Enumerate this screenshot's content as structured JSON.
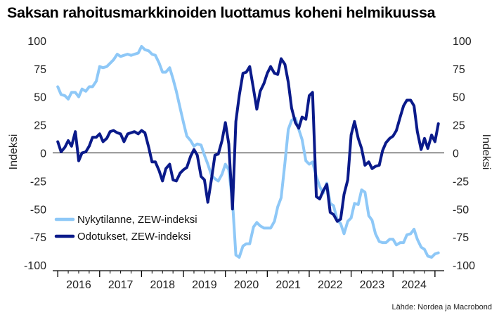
{
  "title": "Saksan rahoitusmarkkinoiden luottamus koheni helmikuussa",
  "source": "Lähde: Nordea ja Macrobond",
  "chart_data": {
    "type": "line",
    "ylabel_left": "Indeksi",
    "ylabel_right": "Indeksi",
    "ylim": [
      -105,
      105
    ],
    "yticks": [
      100,
      75,
      50,
      25,
      0,
      -25,
      -50,
      -75,
      -100
    ],
    "xlim": [
      2015.88,
      2025.22
    ],
    "x_tick_labels": [
      "2016",
      "2017",
      "2018",
      "2019",
      "2020",
      "2021",
      "2022",
      "2023",
      "2024"
    ],
    "grid": false,
    "zero_line": true,
    "legend_position": "lower-left",
    "series": [
      {
        "name": "Nykytilanne, ZEW-indeksi",
        "color": "#8ec8f7",
        "x": [
          2016.0,
          2016.08,
          2016.17,
          2016.25,
          2016.33,
          2016.42,
          2016.5,
          2016.58,
          2016.67,
          2016.75,
          2016.83,
          2016.92,
          2017.0,
          2017.08,
          2017.17,
          2017.25,
          2017.33,
          2017.42,
          2017.5,
          2017.58,
          2017.67,
          2017.75,
          2017.83,
          2017.92,
          2018.0,
          2018.08,
          2018.17,
          2018.25,
          2018.33,
          2018.42,
          2018.5,
          2018.58,
          2018.67,
          2018.75,
          2018.83,
          2018.92,
          2019.0,
          2019.08,
          2019.17,
          2019.25,
          2019.33,
          2019.42,
          2019.5,
          2019.58,
          2019.67,
          2019.75,
          2019.83,
          2019.92,
          2020.0,
          2020.08,
          2020.17,
          2020.25,
          2020.33,
          2020.42,
          2020.5,
          2020.58,
          2020.67,
          2020.75,
          2020.83,
          2020.92,
          2021.0,
          2021.08,
          2021.17,
          2021.25,
          2021.33,
          2021.42,
          2021.5,
          2021.58,
          2021.67,
          2021.75,
          2021.83,
          2021.92,
          2022.0,
          2022.08,
          2022.17,
          2022.25,
          2022.33,
          2022.42,
          2022.5,
          2022.58,
          2022.67,
          2022.75,
          2022.83,
          2022.92,
          2023.0,
          2023.08,
          2023.17,
          2023.25,
          2023.33,
          2023.42,
          2023.5,
          2023.58,
          2023.67,
          2023.75,
          2023.83,
          2023.92,
          2024.0,
          2024.08,
          2024.17,
          2024.25,
          2024.33,
          2024.42,
          2024.5,
          2024.58,
          2024.67,
          2024.75,
          2024.83,
          2024.92,
          2025.0,
          2025.08
        ],
        "y": [
          59,
          52,
          51,
          48,
          54,
          54,
          50,
          57,
          55,
          59,
          59,
          64,
          77,
          76,
          77,
          80,
          83,
          88,
          86,
          87,
          88,
          87,
          88,
          89,
          95,
          92,
          91,
          88,
          87,
          80,
          72,
          72,
          76,
          66,
          55,
          40,
          27,
          15,
          11,
          6,
          8,
          7,
          -2,
          -10,
          -20,
          -23,
          -25,
          -19,
          -10,
          -15,
          -43,
          -91,
          -93,
          -83,
          -81,
          -81,
          -66,
          -62,
          -65,
          -67,
          -67,
          -67,
          -61,
          -48,
          -40,
          -9,
          21,
          29,
          31,
          21,
          12,
          -7,
          -10,
          -8,
          -21,
          -30,
          -36,
          -27,
          -45,
          -47,
          -60,
          -63,
          -72,
          -61,
          -58,
          -45,
          -46,
          -33,
          -35,
          -56,
          -60,
          -72,
          -79,
          -80,
          -80,
          -77,
          -77,
          -82,
          -80,
          -80,
          -73,
          -72,
          -68,
          -77,
          -84,
          -86,
          -92,
          -93,
          -90,
          -89
        ]
      },
      {
        "name": "Odotukset, ZEW-indeksi",
        "color": "#0a1a8a",
        "x": [
          2016.0,
          2016.08,
          2016.17,
          2016.25,
          2016.33,
          2016.42,
          2016.5,
          2016.58,
          2016.67,
          2016.75,
          2016.83,
          2016.92,
          2017.0,
          2017.08,
          2017.17,
          2017.25,
          2017.33,
          2017.42,
          2017.5,
          2017.58,
          2017.67,
          2017.75,
          2017.83,
          2017.92,
          2018.0,
          2018.08,
          2018.17,
          2018.25,
          2018.33,
          2018.42,
          2018.5,
          2018.58,
          2018.67,
          2018.75,
          2018.83,
          2018.92,
          2019.0,
          2019.08,
          2019.17,
          2019.25,
          2019.33,
          2019.42,
          2019.5,
          2019.58,
          2019.67,
          2019.75,
          2019.83,
          2019.92,
          2020.0,
          2020.08,
          2020.17,
          2020.25,
          2020.33,
          2020.42,
          2020.5,
          2020.58,
          2020.67,
          2020.75,
          2020.83,
          2020.92,
          2021.0,
          2021.08,
          2021.17,
          2021.25,
          2021.33,
          2021.42,
          2021.5,
          2021.58,
          2021.67,
          2021.75,
          2021.83,
          2021.92,
          2022.0,
          2022.08,
          2022.17,
          2022.25,
          2022.33,
          2022.42,
          2022.5,
          2022.58,
          2022.67,
          2022.75,
          2022.83,
          2022.92,
          2023.0,
          2023.08,
          2023.17,
          2023.25,
          2023.33,
          2023.42,
          2023.5,
          2023.58,
          2023.67,
          2023.75,
          2023.83,
          2023.92,
          2024.0,
          2024.08,
          2024.17,
          2024.25,
          2024.33,
          2024.42,
          2024.5,
          2024.58,
          2024.67,
          2024.75,
          2024.83,
          2024.92,
          2025.0,
          2025.08
        ],
        "y": [
          10,
          1,
          5,
          11,
          6,
          19,
          -7,
          0,
          1,
          6,
          14,
          14,
          17,
          10,
          13,
          19,
          20,
          18,
          17,
          10,
          17,
          18,
          19,
          17,
          20,
          18,
          5,
          -8,
          -8,
          -16,
          -25,
          -14,
          -10,
          -24,
          -25,
          -18,
          -15,
          -13,
          -3,
          3,
          -2,
          -21,
          -24,
          -44,
          -23,
          -2,
          -1,
          11,
          27,
          8,
          -50,
          28,
          51,
          71,
          72,
          77,
          57,
          39,
          55,
          62,
          71,
          77,
          71,
          70,
          84,
          79,
          63,
          40,
          27,
          22,
          32,
          30,
          51,
          54,
          -39,
          -41,
          -34,
          -28,
          -53,
          -55,
          -61,
          -59,
          -37,
          -24,
          16,
          28,
          13,
          4,
          -11,
          -8,
          -14,
          -12,
          -11,
          2,
          9,
          13,
          15,
          20,
          32,
          42,
          47,
          47,
          42,
          19,
          3,
          13,
          4,
          16,
          10,
          26
        ]
      }
    ]
  }
}
